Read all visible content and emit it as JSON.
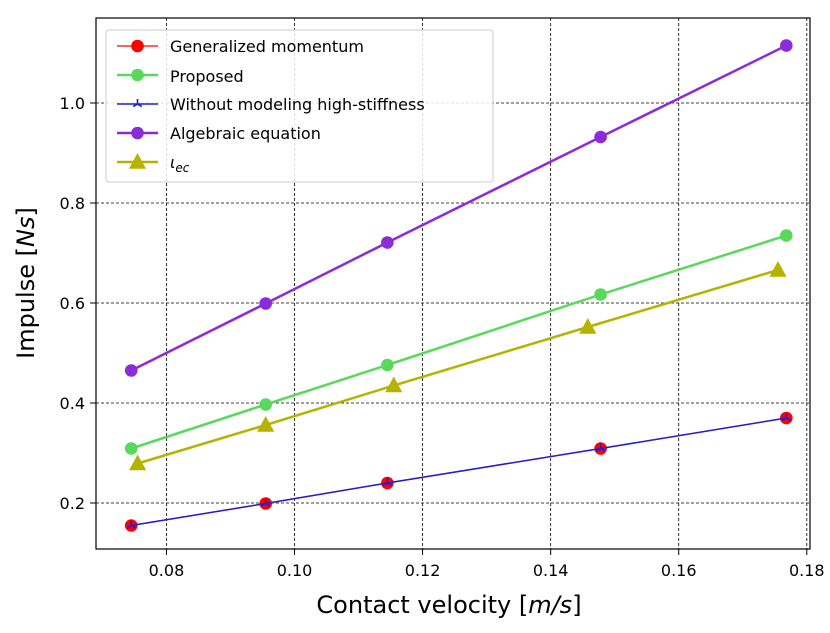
{
  "chart_data": {
    "type": "line",
    "xlabel": "Contact velocity [m/s]",
    "xlabel_parts": [
      "Contact velocity [",
      "m/s",
      "]"
    ],
    "ylabel": "Impulse [Ns]",
    "ylabel_parts": [
      "Impulse [",
      "Ns",
      "]"
    ],
    "xlim": [
      0.069,
      0.1805
    ],
    "ylim": [
      0.108,
      1.17
    ],
    "xticks": [
      0.08,
      0.1,
      0.12,
      0.14,
      0.16,
      0.18
    ],
    "xtick_labels": [
      "0.08",
      "0.10",
      "0.12",
      "0.14",
      "0.16",
      "0.18"
    ],
    "yticks": [
      0.2,
      0.4,
      0.6,
      0.8,
      1.0
    ],
    "ytick_labels": [
      "0.2",
      "0.4",
      "0.6",
      "0.8",
      "1.0"
    ],
    "grid": true,
    "legend_position": "top-left",
    "series": [
      {
        "name": "Generalized momentum",
        "color": "#ff0000",
        "marker": "circle",
        "line_width": 1.2,
        "x": [
          0.0745,
          0.0955,
          0.1145,
          0.1478,
          0.1768
        ],
        "y": [
          0.155,
          0.199,
          0.24,
          0.309,
          0.37
        ]
      },
      {
        "name": "Proposed",
        "color": "#59d95c",
        "marker": "circle",
        "line_width": 2.5,
        "x": [
          0.0745,
          0.0955,
          0.1145,
          0.1478,
          0.1768
        ],
        "y": [
          0.309,
          0.397,
          0.476,
          0.617,
          0.735
        ]
      },
      {
        "name": "Without modeling high-stiffness",
        "color": "#2020d0",
        "marker": "star",
        "line_width": 1.5,
        "x": [
          0.0745,
          0.0955,
          0.1145,
          0.1478,
          0.1768
        ],
        "y": [
          0.155,
          0.199,
          0.24,
          0.309,
          0.37
        ]
      },
      {
        "name": "Algebraic equation",
        "color": "#8b2cd8",
        "marker": "circle",
        "line_width": 2.5,
        "x": [
          0.0745,
          0.0955,
          0.1145,
          0.1478,
          0.1768
        ],
        "y": [
          0.465,
          0.599,
          0.721,
          0.932,
          1.115
        ]
      },
      {
        "name": "ιec",
        "name_parts": [
          "ι",
          "ec"
        ],
        "color": "#b5b300",
        "marker": "triangle",
        "line_width": 2.5,
        "x": [
          0.0755,
          0.0955,
          0.1155,
          0.1458,
          0.1755
        ],
        "y": [
          0.279,
          0.356,
          0.435,
          0.552,
          0.666
        ]
      }
    ]
  }
}
